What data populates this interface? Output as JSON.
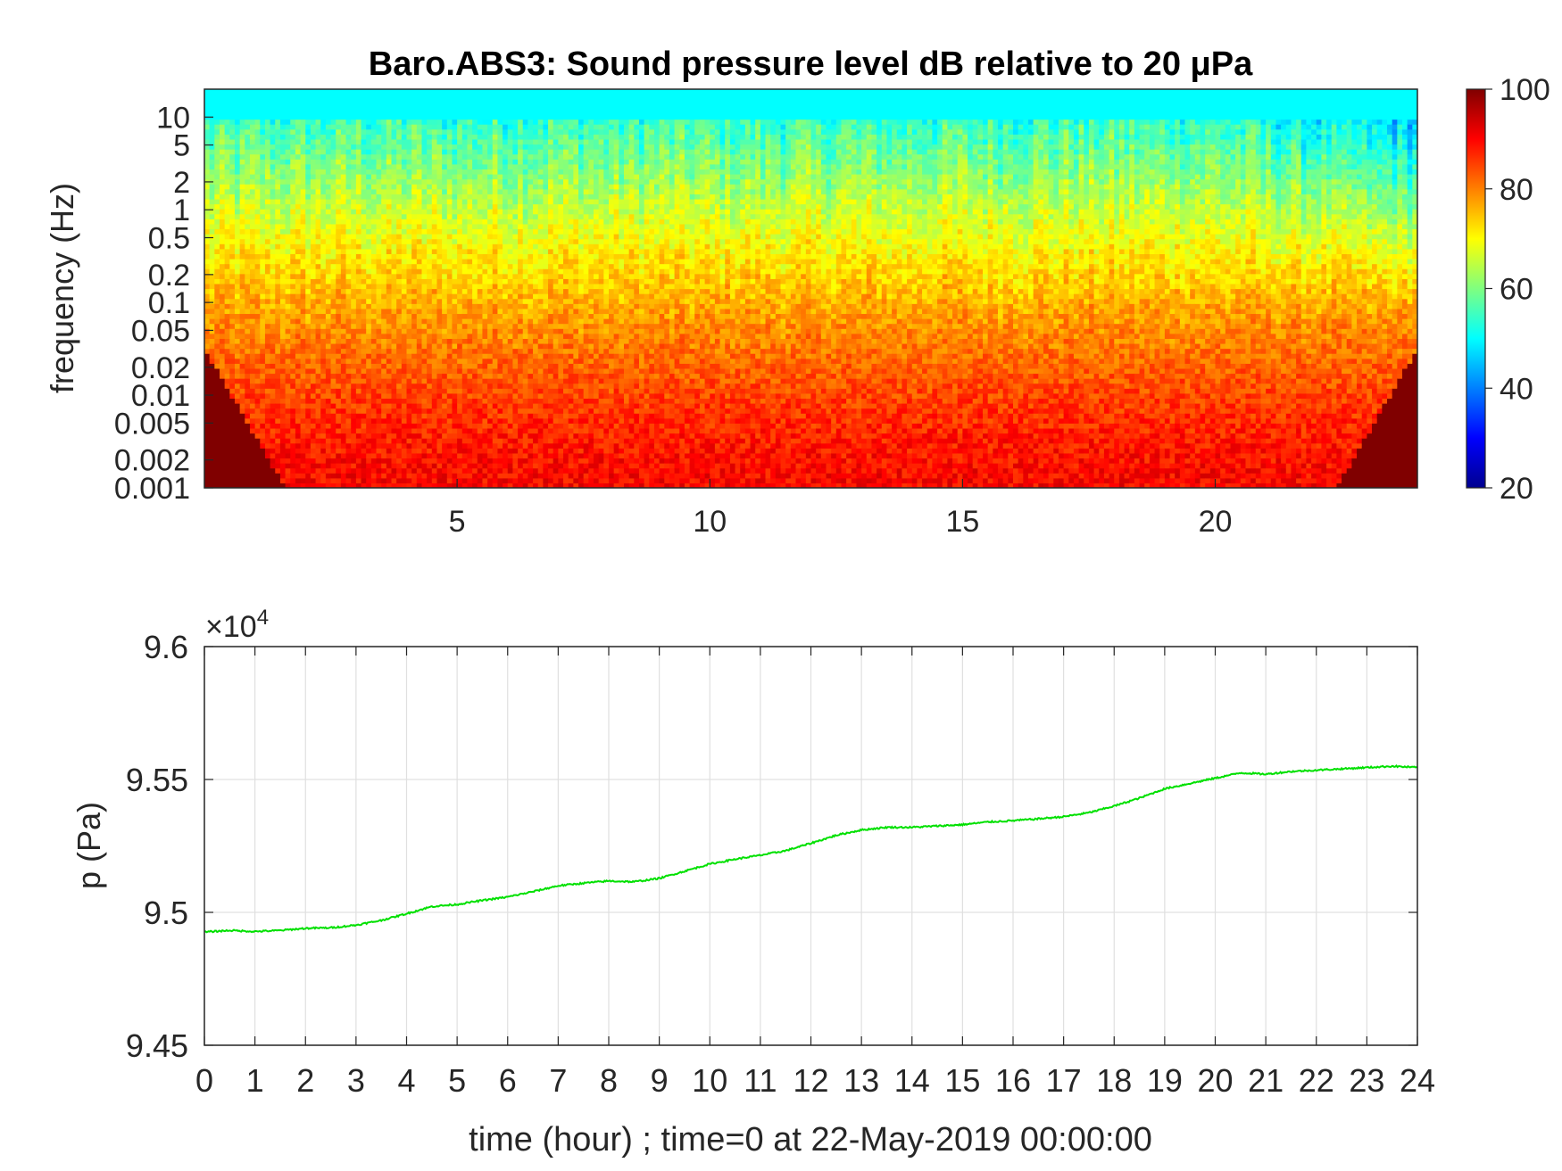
{
  "chart_data": [
    {
      "type": "heatmap",
      "title": "Baro.ABS3: Sound pressure level dB relative to 20 μPa",
      "xlabel": "",
      "ylabel": "frequency (Hz)",
      "xlim": [
        0,
        24
      ],
      "x_ticks": [
        "5",
        "10",
        "15",
        "20"
      ],
      "y_scale": "log",
      "ylim": [
        0.001,
        20
      ],
      "y_ticks": [
        "10",
        "5",
        "2",
        "1",
        "0.5",
        "0.2",
        "0.1",
        "0.05",
        "0.02",
        "0.01",
        "0.005",
        "0.002",
        "0.001"
      ],
      "colorbar": {
        "range": [
          20,
          100
        ],
        "ticks": [
          "100",
          "80",
          "60",
          "40",
          "20"
        ],
        "colormap": "jet"
      },
      "description_levels": {
        "low_freq_db": 90,
        "high_freq_db": 50,
        "late_hours_high_freq_db": 40
      }
    },
    {
      "type": "line",
      "title": "",
      "xlabel": "time (hour) ; time=0 at 22-May-2019 00:00:00",
      "ylabel": "p (Pa)",
      "xlim": [
        0,
        24
      ],
      "ylim": [
        9.45,
        9.6
      ],
      "y_exponent_label": "×10",
      "y_exponent_power": "4",
      "x_ticks": [
        "0",
        "1",
        "2",
        "3",
        "4",
        "5",
        "6",
        "7",
        "8",
        "9",
        "10",
        "11",
        "12",
        "13",
        "14",
        "15",
        "16",
        "17",
        "18",
        "19",
        "20",
        "21",
        "22",
        "23",
        "24"
      ],
      "y_ticks": [
        "9.6",
        "9.55",
        "9.5",
        "9.45"
      ],
      "grid": true,
      "series": [
        {
          "color": "#00e000",
          "x": [
            0,
            0.5,
            1,
            1.5,
            2,
            2.5,
            3,
            3.5,
            4,
            4.5,
            5,
            5.5,
            6,
            6.5,
            7,
            7.5,
            8,
            8.5,
            9,
            9.5,
            10,
            10.5,
            11,
            11.5,
            12,
            12.5,
            13,
            13.5,
            14,
            14.5,
            15,
            15.5,
            16,
            16.5,
            17,
            17.5,
            18,
            18.5,
            19,
            19.5,
            20,
            20.5,
            21,
            21.5,
            22,
            22.5,
            23,
            23.5,
            24
          ],
          "y": [
            9.4926,
            9.4932,
            9.4928,
            9.4932,
            9.494,
            9.4942,
            9.4952,
            9.497,
            9.4995,
            9.5022,
            9.503,
            9.5045,
            9.5058,
            9.5078,
            9.51,
            9.511,
            9.5118,
            9.5115,
            9.5128,
            9.5155,
            9.5182,
            9.52,
            9.5215,
            9.5232,
            9.526,
            9.529,
            9.531,
            9.532,
            9.532,
            9.5325,
            9.533,
            9.534,
            9.5345,
            9.5352,
            9.536,
            9.5375,
            9.54,
            9.543,
            9.5465,
            9.5485,
            9.5505,
            9.5525,
            9.552,
            9.553,
            9.5535,
            9.554,
            9.5545,
            9.555,
            9.5545
          ]
        }
      ]
    }
  ]
}
